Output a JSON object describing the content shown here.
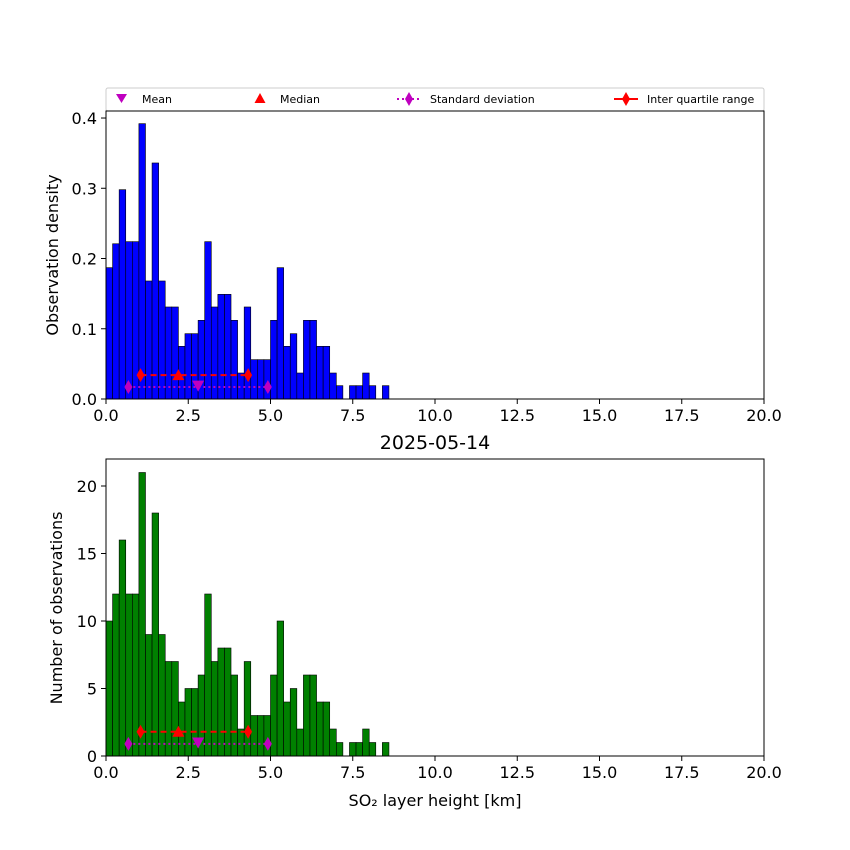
{
  "chart_data": [
    {
      "type": "bar",
      "panel": "top",
      "title": "",
      "xlabel": "",
      "ylabel": "Observation density",
      "xlim": [
        0,
        20
      ],
      "ylim": [
        0,
        0.41
      ],
      "xticks": [
        "0.0",
        "2.5",
        "5.0",
        "7.5",
        "10.0",
        "12.5",
        "15.0",
        "17.5",
        "20.0"
      ],
      "yticks": [
        "0.0",
        "0.1",
        "0.2",
        "0.3",
        "0.4"
      ],
      "bin_width": 0.2,
      "bar_color": "#0000ff",
      "bins": [
        {
          "x": 0.0,
          "v": 0.187
        },
        {
          "x": 0.2,
          "v": 0.221
        },
        {
          "x": 0.4,
          "v": 0.298
        },
        {
          "x": 0.6,
          "v": 0.224
        },
        {
          "x": 0.8,
          "v": 0.224
        },
        {
          "x": 1.0,
          "v": 0.392
        },
        {
          "x": 1.2,
          "v": 0.168
        },
        {
          "x": 1.4,
          "v": 0.336
        },
        {
          "x": 1.6,
          "v": 0.168
        },
        {
          "x": 1.8,
          "v": 0.131
        },
        {
          "x": 2.0,
          "v": 0.131
        },
        {
          "x": 2.2,
          "v": 0.075
        },
        {
          "x": 2.4,
          "v": 0.093
        },
        {
          "x": 2.6,
          "v": 0.093
        },
        {
          "x": 2.8,
          "v": 0.112
        },
        {
          "x": 3.0,
          "v": 0.224
        },
        {
          "x": 3.2,
          "v": 0.131
        },
        {
          "x": 3.4,
          "v": 0.149
        },
        {
          "x": 3.6,
          "v": 0.149
        },
        {
          "x": 3.8,
          "v": 0.112
        },
        {
          "x": 4.0,
          "v": 0.037
        },
        {
          "x": 4.2,
          "v": 0.131
        },
        {
          "x": 4.4,
          "v": 0.056
        },
        {
          "x": 4.6,
          "v": 0.056
        },
        {
          "x": 4.8,
          "v": 0.056
        },
        {
          "x": 5.0,
          "v": 0.112
        },
        {
          "x": 5.2,
          "v": 0.187
        },
        {
          "x": 5.4,
          "v": 0.075
        },
        {
          "x": 5.6,
          "v": 0.093
        },
        {
          "x": 5.8,
          "v": 0.037
        },
        {
          "x": 6.0,
          "v": 0.112
        },
        {
          "x": 6.2,
          "v": 0.112
        },
        {
          "x": 6.4,
          "v": 0.075
        },
        {
          "x": 6.6,
          "v": 0.075
        },
        {
          "x": 6.8,
          "v": 0.037
        },
        {
          "x": 7.0,
          "v": 0.019
        },
        {
          "x": 7.4,
          "v": 0.019
        },
        {
          "x": 7.6,
          "v": 0.019
        },
        {
          "x": 7.8,
          "v": 0.037
        },
        {
          "x": 8.0,
          "v": 0.019
        },
        {
          "x": 8.4,
          "v": 0.019
        }
      ],
      "stats": {
        "mean": {
          "x": 2.8,
          "y": 0.019
        },
        "median": {
          "x": 2.2,
          "y": 0.034
        },
        "std": {
          "low": 0.68,
          "high": 4.92,
          "y": 0.017
        },
        "iqr": {
          "low": 1.05,
          "high": 4.32,
          "y": 0.034
        }
      }
    },
    {
      "type": "bar",
      "panel": "bottom",
      "title": "2025-05-14",
      "xlabel": "SO₂ layer height [km]",
      "ylabel": "Number of observations",
      "xlim": [
        0,
        20
      ],
      "ylim": [
        0,
        22
      ],
      "xticks": [
        "0.0",
        "2.5",
        "5.0",
        "7.5",
        "10.0",
        "12.5",
        "15.0",
        "17.5",
        "20.0"
      ],
      "yticks": [
        "0",
        "5",
        "10",
        "15",
        "20"
      ],
      "bin_width": 0.2,
      "bar_color": "#008000",
      "bins": [
        {
          "x": 0.0,
          "v": 10
        },
        {
          "x": 0.2,
          "v": 12
        },
        {
          "x": 0.4,
          "v": 16
        },
        {
          "x": 0.6,
          "v": 12
        },
        {
          "x": 0.8,
          "v": 12
        },
        {
          "x": 1.0,
          "v": 21
        },
        {
          "x": 1.2,
          "v": 9
        },
        {
          "x": 1.4,
          "v": 18
        },
        {
          "x": 1.6,
          "v": 9
        },
        {
          "x": 1.8,
          "v": 7
        },
        {
          "x": 2.0,
          "v": 7
        },
        {
          "x": 2.2,
          "v": 4
        },
        {
          "x": 2.4,
          "v": 5
        },
        {
          "x": 2.6,
          "v": 5
        },
        {
          "x": 2.8,
          "v": 6
        },
        {
          "x": 3.0,
          "v": 12
        },
        {
          "x": 3.2,
          "v": 7
        },
        {
          "x": 3.4,
          "v": 8
        },
        {
          "x": 3.6,
          "v": 8
        },
        {
          "x": 3.8,
          "v": 6
        },
        {
          "x": 4.0,
          "v": 2
        },
        {
          "x": 4.2,
          "v": 7
        },
        {
          "x": 4.4,
          "v": 3
        },
        {
          "x": 4.6,
          "v": 3
        },
        {
          "x": 4.8,
          "v": 3
        },
        {
          "x": 5.0,
          "v": 6
        },
        {
          "x": 5.2,
          "v": 10
        },
        {
          "x": 5.4,
          "v": 4
        },
        {
          "x": 5.6,
          "v": 5
        },
        {
          "x": 5.8,
          "v": 2
        },
        {
          "x": 6.0,
          "v": 6
        },
        {
          "x": 6.2,
          "v": 6
        },
        {
          "x": 6.4,
          "v": 4
        },
        {
          "x": 6.6,
          "v": 4
        },
        {
          "x": 6.8,
          "v": 2
        },
        {
          "x": 7.0,
          "v": 1
        },
        {
          "x": 7.4,
          "v": 1
        },
        {
          "x": 7.6,
          "v": 1
        },
        {
          "x": 7.8,
          "v": 2
        },
        {
          "x": 8.0,
          "v": 1
        },
        {
          "x": 8.4,
          "v": 1
        }
      ],
      "stats": {
        "mean": {
          "x": 2.8,
          "y": 1.0
        },
        "median": {
          "x": 2.2,
          "y": 1.8
        },
        "std": {
          "low": 0.68,
          "high": 4.92,
          "y": 0.9
        },
        "iqr": {
          "low": 1.05,
          "high": 4.32,
          "y": 1.8
        }
      }
    }
  ],
  "legend": {
    "placement": "top",
    "entries": [
      {
        "label": "Mean",
        "marker": "triangle-down",
        "color": "#bf00bf"
      },
      {
        "label": "Median",
        "marker": "triangle-up",
        "color": "#ff0000"
      },
      {
        "label": "Standard deviation",
        "marker": "diamond-dotted",
        "color": "#bf00bf"
      },
      {
        "label": "Inter quartile range",
        "marker": "diamond-dashed",
        "color": "#ff0000"
      }
    ]
  }
}
